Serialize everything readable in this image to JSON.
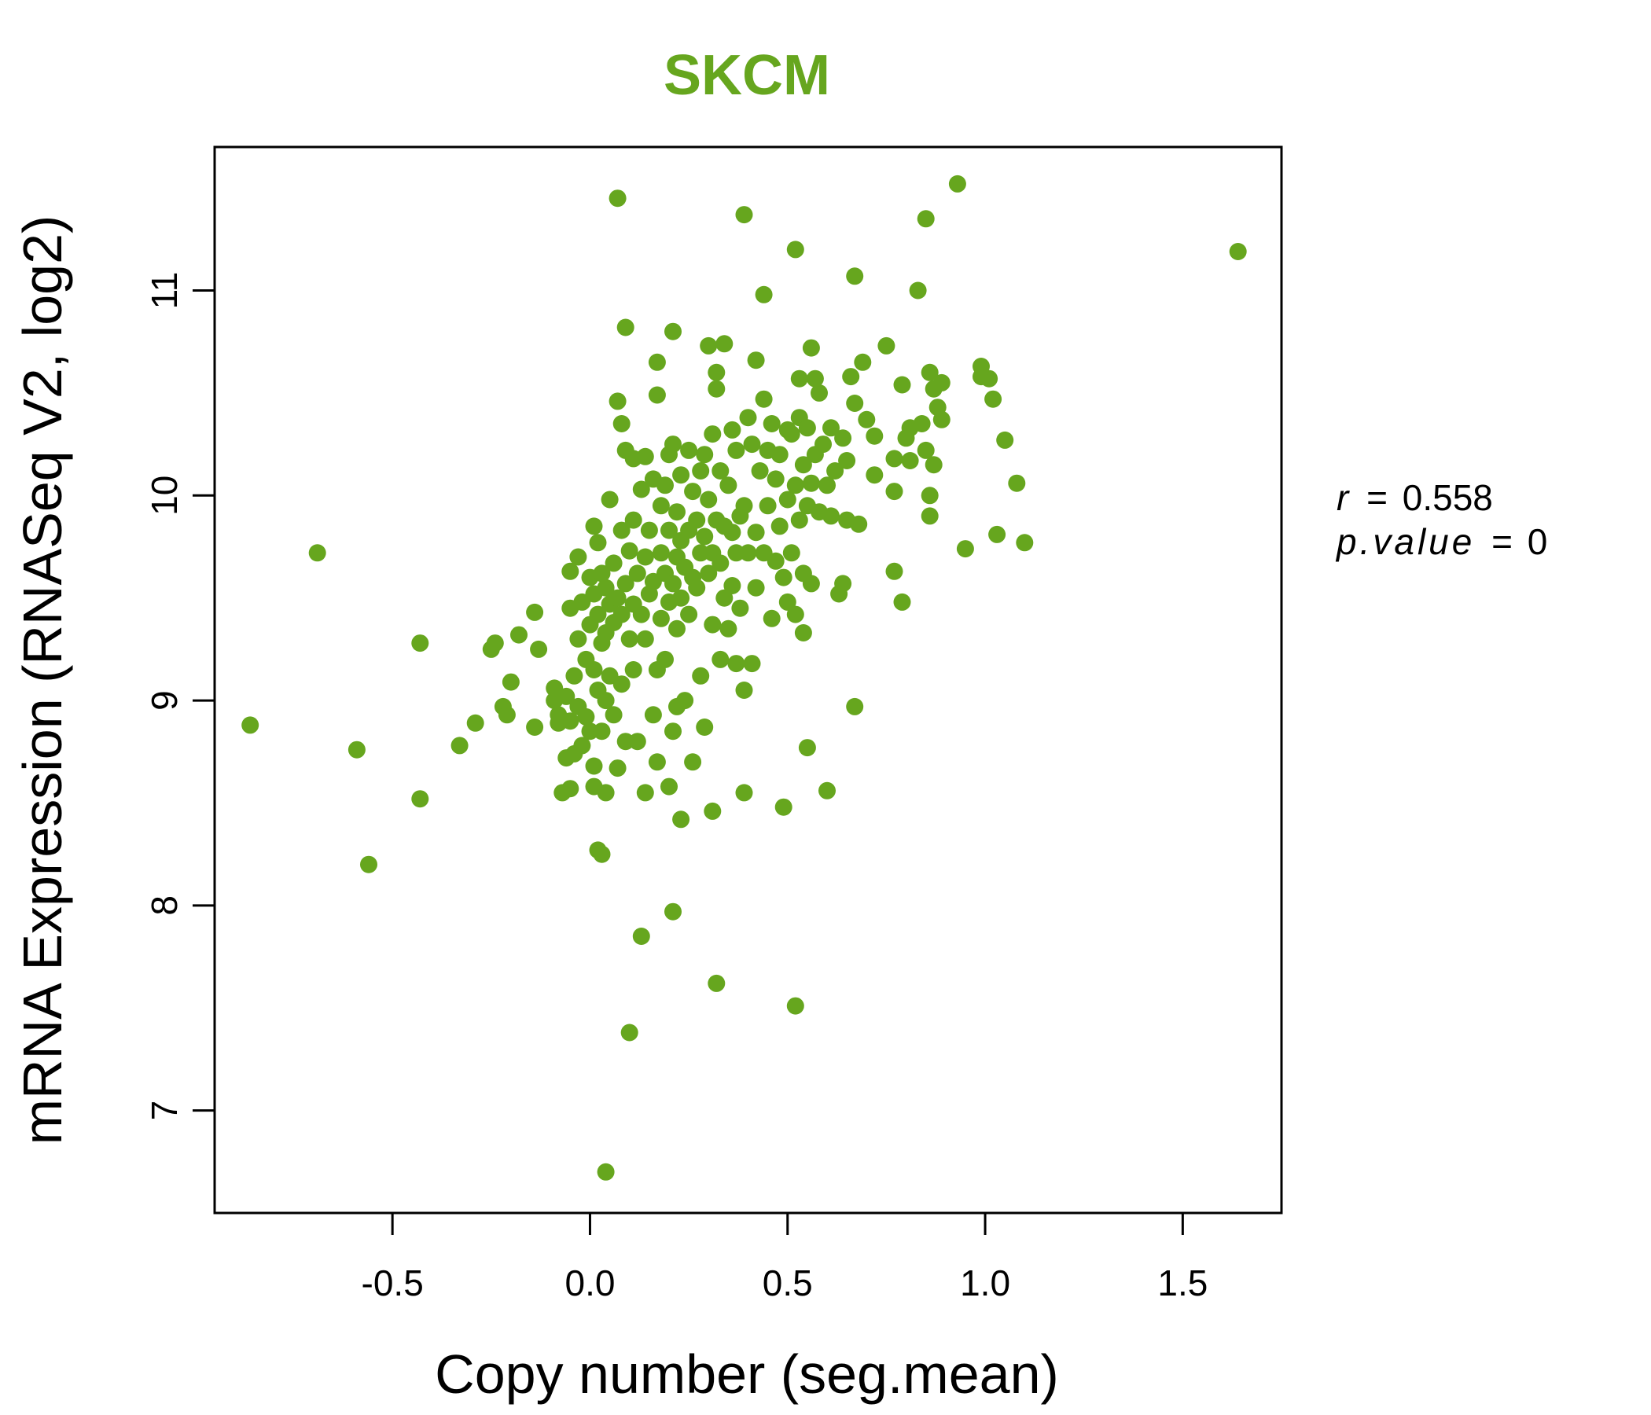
{
  "chart_data": {
    "type": "scatter",
    "title": "SKCM",
    "xlabel": "Copy number (seg.mean)",
    "ylabel": "mRNA Expression (RNASeq V2, log2)",
    "xlim": [
      -0.95,
      1.75
    ],
    "ylim": [
      6.5,
      11.7
    ],
    "x_ticks": [
      -0.5,
      0.0,
      0.5,
      1.0,
      1.5
    ],
    "x_tick_labels": [
      "-0.5",
      "0.0",
      "0.5",
      "1.0",
      "1.5"
    ],
    "y_ticks": [
      7,
      8,
      9,
      10,
      11
    ],
    "y_tick_labels": [
      "7",
      "8",
      "9",
      "10",
      "11"
    ],
    "grid": false,
    "point_color": "#66A61E",
    "annotations": {
      "r_label": "r",
      "r_value": "0.558",
      "p_label": "p.value",
      "p_value": "0"
    },
    "points": [
      [
        -0.86,
        8.88
      ],
      [
        -0.69,
        9.72
      ],
      [
        -0.59,
        8.76
      ],
      [
        -0.56,
        8.2
      ],
      [
        -0.43,
        9.28
      ],
      [
        -0.43,
        8.52
      ],
      [
        -0.33,
        8.78
      ],
      [
        -0.29,
        8.89
      ],
      [
        -0.25,
        9.25
      ],
      [
        -0.24,
        9.28
      ],
      [
        -0.22,
        8.97
      ],
      [
        -0.21,
        8.93
      ],
      [
        -0.2,
        9.09
      ],
      [
        -0.18,
        9.32
      ],
      [
        -0.14,
        9.43
      ],
      [
        -0.14,
        8.87
      ],
      [
        -0.13,
        9.25
      ],
      [
        -0.09,
        9.06
      ],
      [
        -0.09,
        9.0
      ],
      [
        -0.08,
        8.93
      ],
      [
        -0.08,
        8.89
      ],
      [
        -0.07,
        8.55
      ],
      [
        -0.06,
        9.02
      ],
      [
        -0.06,
        8.72
      ],
      [
        -0.05,
        9.63
      ],
      [
        -0.05,
        9.45
      ],
      [
        -0.05,
        8.9
      ],
      [
        -0.05,
        8.57
      ],
      [
        -0.04,
        9.12
      ],
      [
        -0.04,
        8.74
      ],
      [
        -0.03,
        9.7
      ],
      [
        -0.03,
        9.3
      ],
      [
        -0.03,
        8.97
      ],
      [
        -0.02,
        9.48
      ],
      [
        -0.02,
        8.78
      ],
      [
        -0.01,
        9.2
      ],
      [
        -0.01,
        8.92
      ],
      [
        0.0,
        9.6
      ],
      [
        0.0,
        9.37
      ],
      [
        0.0,
        8.85
      ],
      [
        0.01,
        9.85
      ],
      [
        0.01,
        9.52
      ],
      [
        0.01,
        9.15
      ],
      [
        0.01,
        8.68
      ],
      [
        0.01,
        8.58
      ],
      [
        0.02,
        9.77
      ],
      [
        0.02,
        9.42
      ],
      [
        0.02,
        9.05
      ],
      [
        0.02,
        8.27
      ],
      [
        0.03,
        9.62
      ],
      [
        0.03,
        9.28
      ],
      [
        0.03,
        8.85
      ],
      [
        0.03,
        8.25
      ],
      [
        0.04,
        9.55
      ],
      [
        0.04,
        9.33
      ],
      [
        0.04,
        9.0
      ],
      [
        0.04,
        8.55
      ],
      [
        0.04,
        6.7
      ],
      [
        0.05,
        9.98
      ],
      [
        0.05,
        9.47
      ],
      [
        0.05,
        9.12
      ],
      [
        0.06,
        9.67
      ],
      [
        0.06,
        9.38
      ],
      [
        0.06,
        8.93
      ],
      [
        0.07,
        11.45
      ],
      [
        0.07,
        10.46
      ],
      [
        0.07,
        9.5
      ],
      [
        0.07,
        8.67
      ],
      [
        0.08,
        10.35
      ],
      [
        0.08,
        9.83
      ],
      [
        0.08,
        9.42
      ],
      [
        0.08,
        9.08
      ],
      [
        0.09,
        10.82
      ],
      [
        0.09,
        10.22
      ],
      [
        0.09,
        9.57
      ],
      [
        0.09,
        8.8
      ],
      [
        0.1,
        9.73
      ],
      [
        0.1,
        9.3
      ],
      [
        0.1,
        7.38
      ],
      [
        0.11,
        10.18
      ],
      [
        0.11,
        9.88
      ],
      [
        0.11,
        9.47
      ],
      [
        0.11,
        9.15
      ],
      [
        0.12,
        9.62
      ],
      [
        0.12,
        8.8
      ],
      [
        0.13,
        10.03
      ],
      [
        0.13,
        9.42
      ],
      [
        0.13,
        7.85
      ],
      [
        0.14,
        10.19
      ],
      [
        0.14,
        9.7
      ],
      [
        0.14,
        9.3
      ],
      [
        0.14,
        8.55
      ],
      [
        0.15,
        9.83
      ],
      [
        0.15,
        9.52
      ],
      [
        0.16,
        10.08
      ],
      [
        0.16,
        9.58
      ],
      [
        0.16,
        8.93
      ],
      [
        0.17,
        10.65
      ],
      [
        0.17,
        10.49
      ],
      [
        0.17,
        9.15
      ],
      [
        0.17,
        8.7
      ],
      [
        0.18,
        9.95
      ],
      [
        0.18,
        9.72
      ],
      [
        0.18,
        9.4
      ],
      [
        0.19,
        10.05
      ],
      [
        0.19,
        9.62
      ],
      [
        0.19,
        9.2
      ],
      [
        0.2,
        10.2
      ],
      [
        0.2,
        9.83
      ],
      [
        0.2,
        9.48
      ],
      [
        0.2,
        8.58
      ],
      [
        0.21,
        10.8
      ],
      [
        0.21,
        10.25
      ],
      [
        0.21,
        9.57
      ],
      [
        0.21,
        8.85
      ],
      [
        0.21,
        7.97
      ],
      [
        0.22,
        9.92
      ],
      [
        0.22,
        9.7
      ],
      [
        0.22,
        9.35
      ],
      [
        0.22,
        8.97
      ],
      [
        0.23,
        10.1
      ],
      [
        0.23,
        9.78
      ],
      [
        0.23,
        9.5
      ],
      [
        0.23,
        8.42
      ],
      [
        0.24,
        9.65
      ],
      [
        0.24,
        9.0
      ],
      [
        0.25,
        10.22
      ],
      [
        0.25,
        9.83
      ],
      [
        0.25,
        9.42
      ],
      [
        0.26,
        10.02
      ],
      [
        0.26,
        9.6
      ],
      [
        0.26,
        8.7
      ],
      [
        0.27,
        9.88
      ],
      [
        0.27,
        9.55
      ],
      [
        0.28,
        10.12
      ],
      [
        0.28,
        9.72
      ],
      [
        0.28,
        9.12
      ],
      [
        0.29,
        10.2
      ],
      [
        0.29,
        9.8
      ],
      [
        0.29,
        8.87
      ],
      [
        0.3,
        10.73
      ],
      [
        0.3,
        9.98
      ],
      [
        0.3,
        9.62
      ],
      [
        0.31,
        10.3
      ],
      [
        0.31,
        9.72
      ],
      [
        0.31,
        9.37
      ],
      [
        0.31,
        8.46
      ],
      [
        0.32,
        10.6
      ],
      [
        0.32,
        10.52
      ],
      [
        0.32,
        9.88
      ],
      [
        0.32,
        7.62
      ],
      [
        0.33,
        10.12
      ],
      [
        0.33,
        9.67
      ],
      [
        0.33,
        9.2
      ],
      [
        0.34,
        10.74
      ],
      [
        0.34,
        9.85
      ],
      [
        0.34,
        9.5
      ],
      [
        0.35,
        10.05
      ],
      [
        0.35,
        9.35
      ],
      [
        0.36,
        10.32
      ],
      [
        0.36,
        9.82
      ],
      [
        0.36,
        9.56
      ],
      [
        0.37,
        10.22
      ],
      [
        0.37,
        9.72
      ],
      [
        0.37,
        9.18
      ],
      [
        0.38,
        9.9
      ],
      [
        0.38,
        9.45
      ],
      [
        0.39,
        11.37
      ],
      [
        0.39,
        9.95
      ],
      [
        0.39,
        9.05
      ],
      [
        0.39,
        8.55
      ],
      [
        0.4,
        10.38
      ],
      [
        0.4,
        9.72
      ],
      [
        0.41,
        10.25
      ],
      [
        0.41,
        9.18
      ],
      [
        0.42,
        10.66
      ],
      [
        0.42,
        9.82
      ],
      [
        0.42,
        9.55
      ],
      [
        0.43,
        10.12
      ],
      [
        0.44,
        10.98
      ],
      [
        0.44,
        10.47
      ],
      [
        0.44,
        9.72
      ],
      [
        0.45,
        10.22
      ],
      [
        0.45,
        9.95
      ],
      [
        0.46,
        10.35
      ],
      [
        0.46,
        9.4
      ],
      [
        0.47,
        10.08
      ],
      [
        0.47,
        9.68
      ],
      [
        0.48,
        10.2
      ],
      [
        0.48,
        9.85
      ],
      [
        0.49,
        9.6
      ],
      [
        0.49,
        8.48
      ],
      [
        0.5,
        10.32
      ],
      [
        0.5,
        9.98
      ],
      [
        0.5,
        9.48
      ],
      [
        0.51,
        10.3
      ],
      [
        0.51,
        9.72
      ],
      [
        0.52,
        11.2
      ],
      [
        0.52,
        10.05
      ],
      [
        0.52,
        9.42
      ],
      [
        0.52,
        7.51
      ],
      [
        0.53,
        10.57
      ],
      [
        0.53,
        10.38
      ],
      [
        0.53,
        9.88
      ],
      [
        0.54,
        10.15
      ],
      [
        0.54,
        9.62
      ],
      [
        0.54,
        9.33
      ],
      [
        0.55,
        10.33
      ],
      [
        0.55,
        9.95
      ],
      [
        0.55,
        8.77
      ],
      [
        0.56,
        10.72
      ],
      [
        0.56,
        10.06
      ],
      [
        0.56,
        9.57
      ],
      [
        0.57,
        10.57
      ],
      [
        0.57,
        10.2
      ],
      [
        0.58,
        10.5
      ],
      [
        0.58,
        9.92
      ],
      [
        0.59,
        10.25
      ],
      [
        0.6,
        10.05
      ],
      [
        0.6,
        8.56
      ],
      [
        0.61,
        10.33
      ],
      [
        0.61,
        9.9
      ],
      [
        0.62,
        10.12
      ],
      [
        0.63,
        9.52
      ],
      [
        0.64,
        10.28
      ],
      [
        0.64,
        9.57
      ],
      [
        0.65,
        10.17
      ],
      [
        0.65,
        9.88
      ],
      [
        0.66,
        10.58
      ],
      [
        0.67,
        11.07
      ],
      [
        0.67,
        10.45
      ],
      [
        0.67,
        8.97
      ],
      [
        0.68,
        9.86
      ],
      [
        0.69,
        10.65
      ],
      [
        0.7,
        10.37
      ],
      [
        0.72,
        10.29
      ],
      [
        0.72,
        10.1
      ],
      [
        0.75,
        10.73
      ],
      [
        0.77,
        10.18
      ],
      [
        0.77,
        9.63
      ],
      [
        0.77,
        10.02
      ],
      [
        0.79,
        10.54
      ],
      [
        0.79,
        9.48
      ],
      [
        0.8,
        10.28
      ],
      [
        0.81,
        10.17
      ],
      [
        0.81,
        10.33
      ],
      [
        0.83,
        11.0
      ],
      [
        0.84,
        10.35
      ],
      [
        0.85,
        11.35
      ],
      [
        0.85,
        10.22
      ],
      [
        0.86,
        10.6
      ],
      [
        0.86,
        9.9
      ],
      [
        0.86,
        10.0
      ],
      [
        0.87,
        10.52
      ],
      [
        0.87,
        10.15
      ],
      [
        0.88,
        10.43
      ],
      [
        0.89,
        10.55
      ],
      [
        0.89,
        10.37
      ],
      [
        0.93,
        11.52
      ],
      [
        0.95,
        9.74
      ],
      [
        0.99,
        10.63
      ],
      [
        0.99,
        10.58
      ],
      [
        1.01,
        10.57
      ],
      [
        1.02,
        10.47
      ],
      [
        1.03,
        9.81
      ],
      [
        1.05,
        10.27
      ],
      [
        1.08,
        10.06
      ],
      [
        1.1,
        9.77
      ],
      [
        1.64,
        11.19
      ]
    ]
  }
}
